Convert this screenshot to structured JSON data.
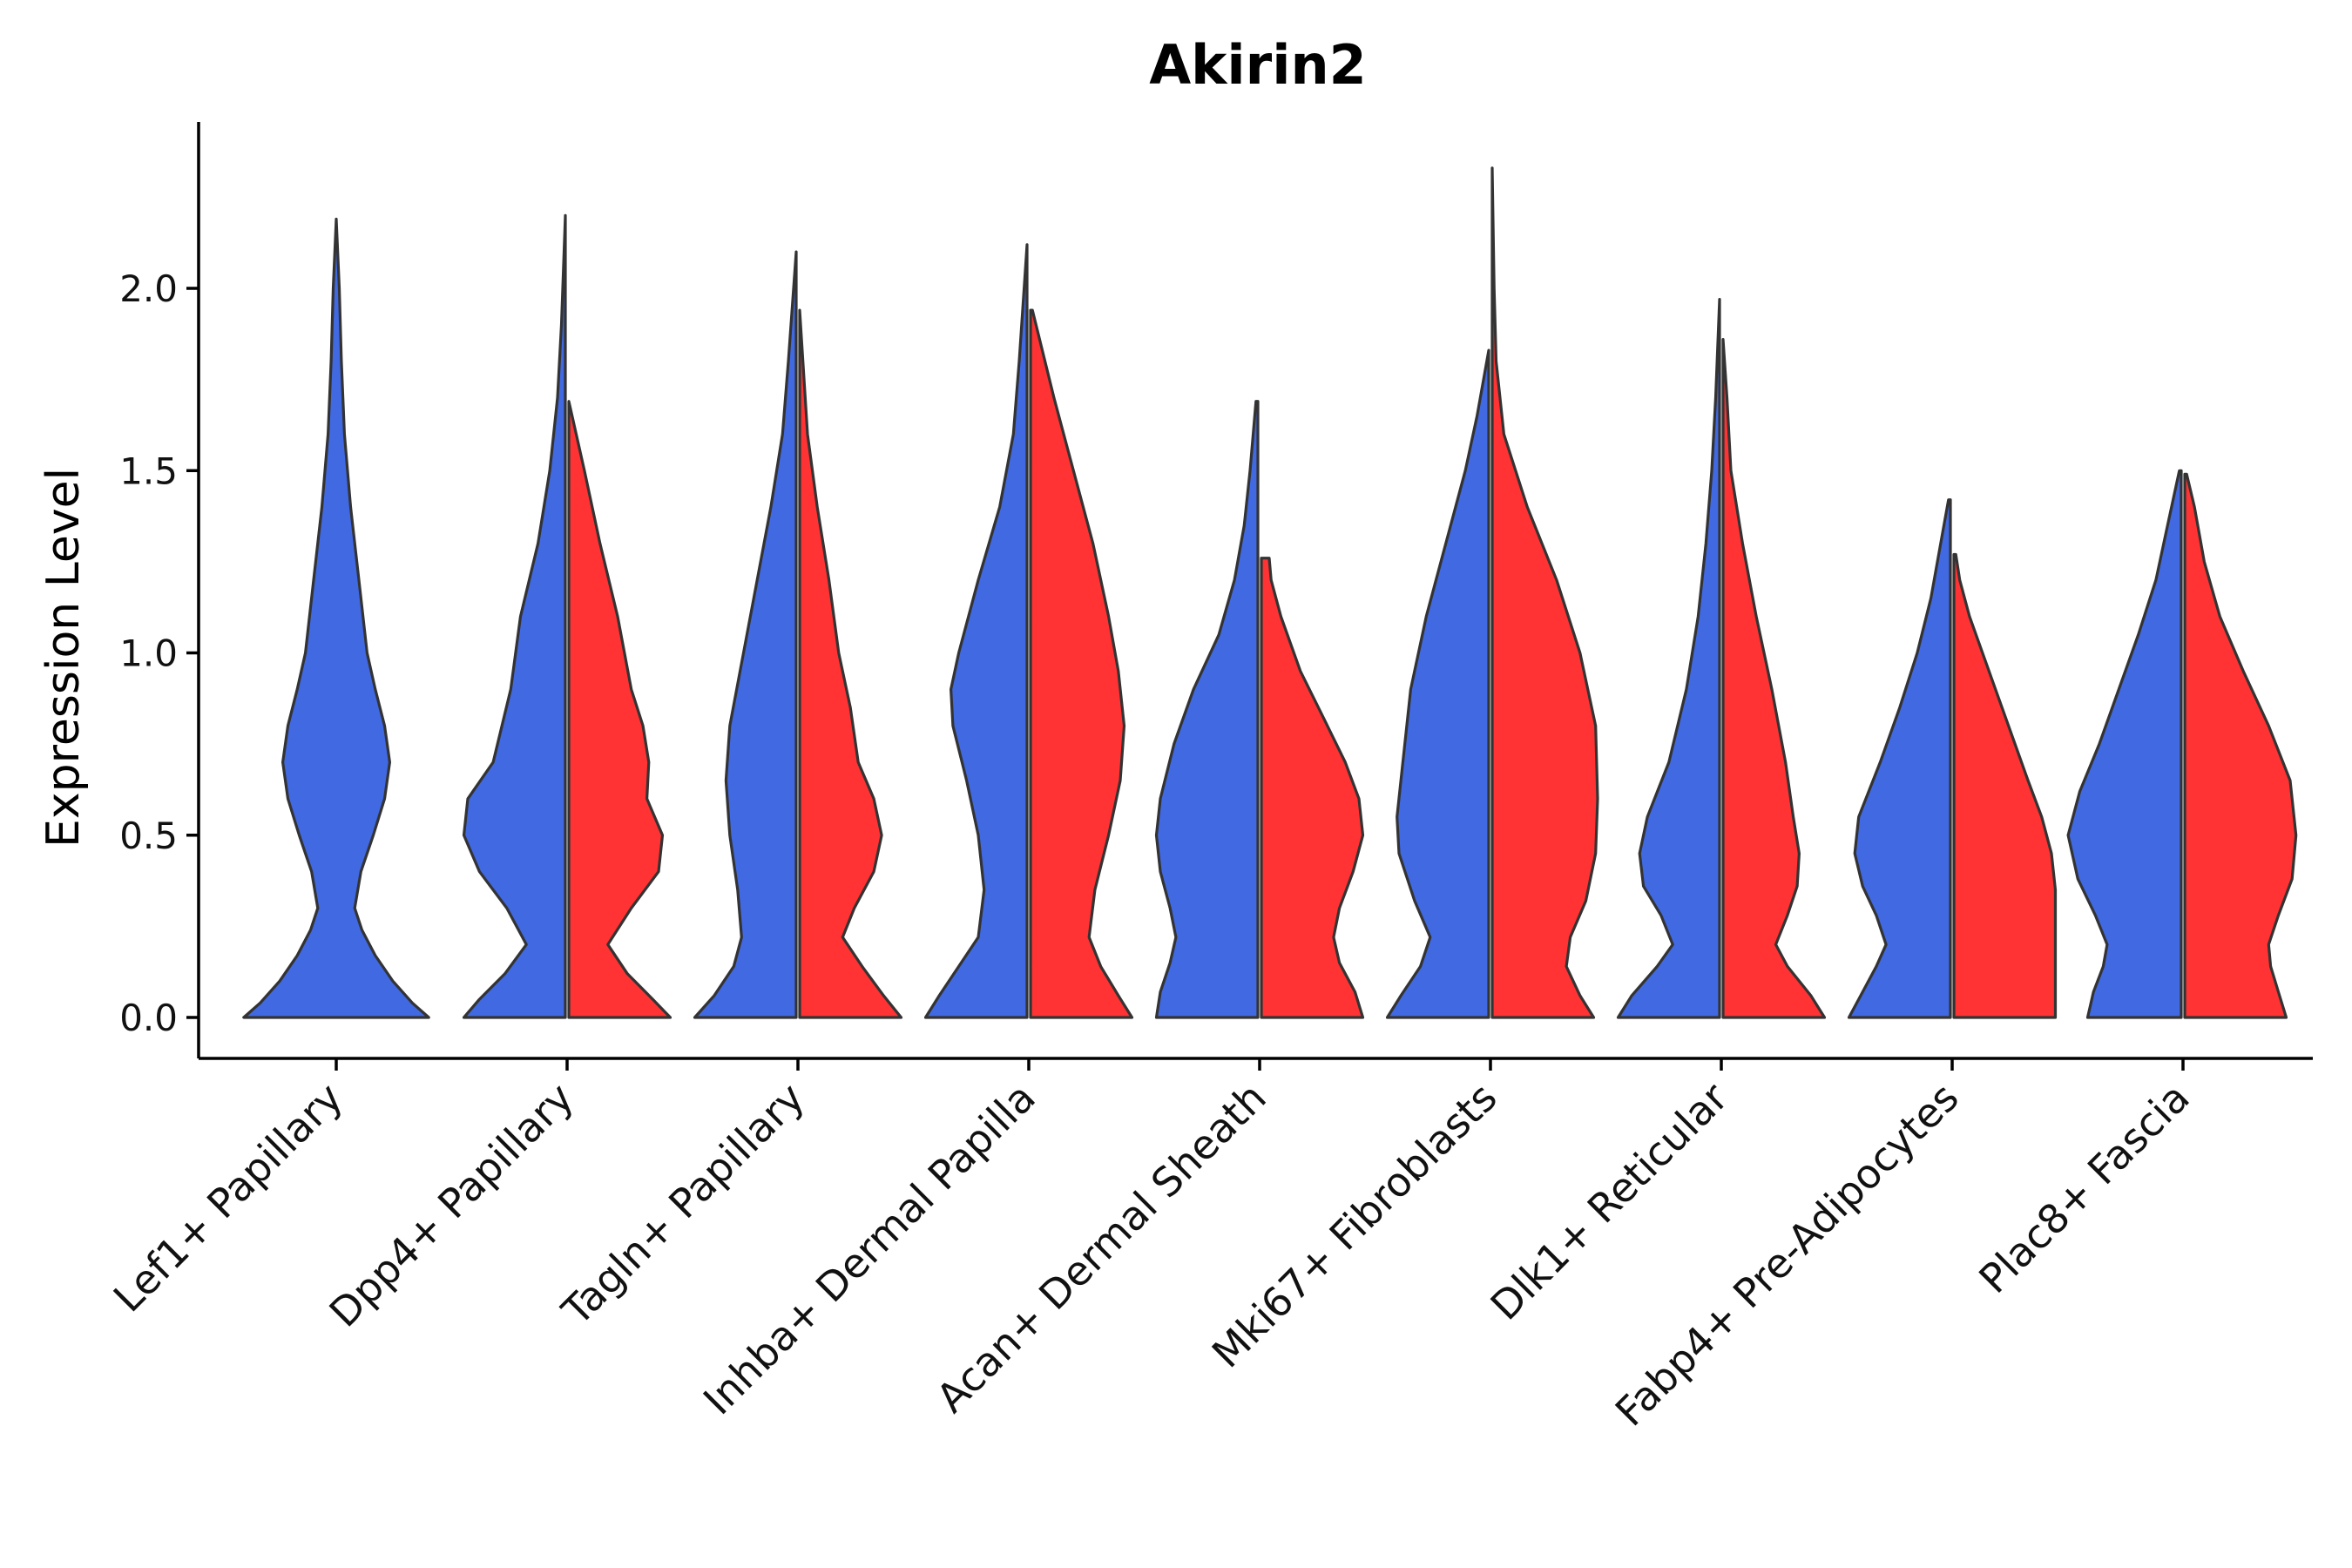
{
  "chart_data": {
    "type": "violin",
    "title": "Akirin2",
    "xlabel": "",
    "ylabel": "Expression Level",
    "ylim": [
      -0.12,
      2.45
    ],
    "yticks": [
      0.0,
      0.5,
      1.0,
      1.5,
      2.0
    ],
    "ytick_labels": [
      "0.0",
      "0.5",
      "1.0",
      "1.5",
      "2.0"
    ],
    "grid": false,
    "legend": "none",
    "categories": [
      "Lef1+ Papillary",
      "Dpp4+ Papillary",
      "Tagln+ Papillary",
      "Inhba+ Dermal Papilla",
      "Acan+ Dermal Sheath",
      "Mki67+ Fibroblasts",
      "Dlk1+ Reticular",
      "Fabp4+ Pre-Adipocytes",
      "Plac8+ Fascia"
    ],
    "series_colors": [
      "#4169E1",
      "#FF3333"
    ],
    "violins": [
      {
        "category": "Lef1+ Papillary",
        "group": 0,
        "split": "full",
        "max": 2.19,
        "profile": [
          [
            0.0,
            0.9
          ],
          [
            0.04,
            0.74
          ],
          [
            0.1,
            0.55
          ],
          [
            0.17,
            0.38
          ],
          [
            0.24,
            0.25
          ],
          [
            0.3,
            0.18
          ],
          [
            0.4,
            0.24
          ],
          [
            0.5,
            0.36
          ],
          [
            0.6,
            0.47
          ],
          [
            0.7,
            0.52
          ],
          [
            0.8,
            0.47
          ],
          [
            0.9,
            0.38
          ],
          [
            1.0,
            0.3
          ],
          [
            1.2,
            0.22
          ],
          [
            1.4,
            0.14
          ],
          [
            1.6,
            0.08
          ],
          [
            1.8,
            0.05
          ],
          [
            2.0,
            0.03
          ],
          [
            2.19,
            0.0
          ]
        ]
      },
      {
        "category": "Dpp4+ Papillary",
        "group": 0,
        "split": "left",
        "max": 2.2,
        "profile": [
          [
            0.0,
            0.52
          ],
          [
            0.05,
            0.44
          ],
          [
            0.12,
            0.31
          ],
          [
            0.2,
            0.2
          ],
          [
            0.3,
            0.3
          ],
          [
            0.4,
            0.44
          ],
          [
            0.5,
            0.52
          ],
          [
            0.6,
            0.5
          ],
          [
            0.7,
            0.37
          ],
          [
            0.9,
            0.28
          ],
          [
            1.1,
            0.23
          ],
          [
            1.3,
            0.14
          ],
          [
            1.5,
            0.08
          ],
          [
            1.7,
            0.04
          ],
          [
            1.9,
            0.02
          ],
          [
            2.2,
            0.0
          ]
        ]
      },
      {
        "category": "Dpp4+ Papillary",
        "group": 1,
        "split": "right",
        "max": 1.69,
        "profile": [
          [
            0.0,
            0.52
          ],
          [
            0.05,
            0.43
          ],
          [
            0.12,
            0.3
          ],
          [
            0.2,
            0.2
          ],
          [
            0.3,
            0.32
          ],
          [
            0.4,
            0.46
          ],
          [
            0.5,
            0.48
          ],
          [
            0.6,
            0.4
          ],
          [
            0.7,
            0.41
          ],
          [
            0.8,
            0.38
          ],
          [
            0.9,
            0.32
          ],
          [
            1.1,
            0.25
          ],
          [
            1.3,
            0.16
          ],
          [
            1.5,
            0.08
          ],
          [
            1.69,
            0.0
          ]
        ]
      },
      {
        "category": "Tagln+ Papillary",
        "group": 0,
        "split": "left",
        "max": 2.1,
        "profile": [
          [
            0.0,
            0.52
          ],
          [
            0.06,
            0.42
          ],
          [
            0.14,
            0.32
          ],
          [
            0.22,
            0.28
          ],
          [
            0.35,
            0.3
          ],
          [
            0.5,
            0.34
          ],
          [
            0.65,
            0.36
          ],
          [
            0.8,
            0.34
          ],
          [
            1.0,
            0.27
          ],
          [
            1.2,
            0.2
          ],
          [
            1.4,
            0.13
          ],
          [
            1.6,
            0.07
          ],
          [
            1.8,
            0.04
          ],
          [
            2.1,
            0.0
          ]
        ]
      },
      {
        "category": "Tagln+ Papillary",
        "group": 1,
        "split": "right",
        "max": 1.94,
        "profile": [
          [
            0.0,
            0.52
          ],
          [
            0.06,
            0.43
          ],
          [
            0.14,
            0.32
          ],
          [
            0.22,
            0.22
          ],
          [
            0.3,
            0.28
          ],
          [
            0.4,
            0.38
          ],
          [
            0.5,
            0.42
          ],
          [
            0.6,
            0.38
          ],
          [
            0.7,
            0.3
          ],
          [
            0.85,
            0.26
          ],
          [
            1.0,
            0.2
          ],
          [
            1.2,
            0.15
          ],
          [
            1.4,
            0.09
          ],
          [
            1.6,
            0.04
          ],
          [
            1.94,
            0.0
          ]
        ]
      },
      {
        "category": "Inhba+ Dermal Papilla",
        "group": 0,
        "split": "left",
        "max": 2.12,
        "profile": [
          [
            0.0,
            0.52
          ],
          [
            0.06,
            0.45
          ],
          [
            0.14,
            0.35
          ],
          [
            0.22,
            0.25
          ],
          [
            0.35,
            0.22
          ],
          [
            0.5,
            0.25
          ],
          [
            0.65,
            0.31
          ],
          [
            0.8,
            0.38
          ],
          [
            0.9,
            0.39
          ],
          [
            1.0,
            0.35
          ],
          [
            1.2,
            0.25
          ],
          [
            1.4,
            0.14
          ],
          [
            1.6,
            0.07
          ],
          [
            1.8,
            0.04
          ],
          [
            2.12,
            0.0
          ]
        ]
      },
      {
        "category": "Inhba+ Dermal Papilla",
        "group": 1,
        "split": "right",
        "max": 1.94,
        "profile": [
          [
            0.0,
            0.52
          ],
          [
            0.06,
            0.45
          ],
          [
            0.14,
            0.36
          ],
          [
            0.22,
            0.3
          ],
          [
            0.35,
            0.33
          ],
          [
            0.5,
            0.4
          ],
          [
            0.65,
            0.46
          ],
          [
            0.8,
            0.48
          ],
          [
            0.95,
            0.45
          ],
          [
            1.1,
            0.4
          ],
          [
            1.3,
            0.32
          ],
          [
            1.5,
            0.22
          ],
          [
            1.7,
            0.12
          ],
          [
            1.94,
            0.01
          ]
        ]
      },
      {
        "category": "Acan+ Dermal Sheath",
        "group": 0,
        "split": "left",
        "max": 1.69,
        "profile": [
          [
            0.0,
            0.52
          ],
          [
            0.07,
            0.5
          ],
          [
            0.15,
            0.45
          ],
          [
            0.22,
            0.42
          ],
          [
            0.3,
            0.45
          ],
          [
            0.4,
            0.5
          ],
          [
            0.5,
            0.52
          ],
          [
            0.6,
            0.5
          ],
          [
            0.75,
            0.43
          ],
          [
            0.9,
            0.33
          ],
          [
            1.05,
            0.2
          ],
          [
            1.2,
            0.12
          ],
          [
            1.35,
            0.07
          ],
          [
            1.5,
            0.04
          ],
          [
            1.69,
            0.01
          ]
        ]
      },
      {
        "category": "Acan+ Dermal Sheath",
        "group": 1,
        "split": "right",
        "max": 1.26,
        "profile": [
          [
            0.0,
            0.52
          ],
          [
            0.07,
            0.48
          ],
          [
            0.15,
            0.4
          ],
          [
            0.22,
            0.37
          ],
          [
            0.3,
            0.4
          ],
          [
            0.4,
            0.47
          ],
          [
            0.5,
            0.52
          ],
          [
            0.6,
            0.5
          ],
          [
            0.7,
            0.43
          ],
          [
            0.82,
            0.32
          ],
          [
            0.95,
            0.2
          ],
          [
            1.1,
            0.1
          ],
          [
            1.2,
            0.05
          ],
          [
            1.26,
            0.04
          ]
        ]
      },
      {
        "category": "Mki67+ Fibroblasts",
        "group": 0,
        "split": "left",
        "max": 1.83,
        "profile": [
          [
            0.0,
            0.52
          ],
          [
            0.06,
            0.45
          ],
          [
            0.14,
            0.35
          ],
          [
            0.22,
            0.3
          ],
          [
            0.32,
            0.38
          ],
          [
            0.45,
            0.46
          ],
          [
            0.55,
            0.47
          ],
          [
            0.7,
            0.44
          ],
          [
            0.9,
            0.4
          ],
          [
            1.1,
            0.32
          ],
          [
            1.3,
            0.22
          ],
          [
            1.5,
            0.12
          ],
          [
            1.65,
            0.06
          ],
          [
            1.83,
            0.0
          ]
        ]
      },
      {
        "category": "Mki67+ Fibroblasts",
        "group": 1,
        "split": "right",
        "max": 2.33,
        "profile": [
          [
            0.0,
            0.52
          ],
          [
            0.06,
            0.45
          ],
          [
            0.14,
            0.38
          ],
          [
            0.22,
            0.4
          ],
          [
            0.32,
            0.48
          ],
          [
            0.45,
            0.53
          ],
          [
            0.6,
            0.54
          ],
          [
            0.8,
            0.53
          ],
          [
            1.0,
            0.45
          ],
          [
            1.2,
            0.33
          ],
          [
            1.4,
            0.18
          ],
          [
            1.6,
            0.06
          ],
          [
            1.8,
            0.02
          ],
          [
            2.0,
            0.01
          ],
          [
            2.33,
            0.0
          ]
        ]
      },
      {
        "category": "Dlk1+ Reticular",
        "group": 0,
        "split": "left",
        "max": 1.97,
        "profile": [
          [
            0.0,
            0.52
          ],
          [
            0.06,
            0.45
          ],
          [
            0.14,
            0.32
          ],
          [
            0.2,
            0.24
          ],
          [
            0.28,
            0.3
          ],
          [
            0.36,
            0.39
          ],
          [
            0.45,
            0.41
          ],
          [
            0.55,
            0.37
          ],
          [
            0.7,
            0.26
          ],
          [
            0.9,
            0.17
          ],
          [
            1.1,
            0.11
          ],
          [
            1.3,
            0.07
          ],
          [
            1.5,
            0.04
          ],
          [
            1.7,
            0.02
          ],
          [
            1.97,
            0.0
          ]
        ]
      },
      {
        "category": "Dlk1+ Reticular",
        "group": 1,
        "split": "right",
        "max": 1.86,
        "profile": [
          [
            0.0,
            0.52
          ],
          [
            0.06,
            0.45
          ],
          [
            0.14,
            0.33
          ],
          [
            0.2,
            0.27
          ],
          [
            0.28,
            0.33
          ],
          [
            0.36,
            0.38
          ],
          [
            0.45,
            0.39
          ],
          [
            0.55,
            0.36
          ],
          [
            0.7,
            0.32
          ],
          [
            0.9,
            0.25
          ],
          [
            1.1,
            0.17
          ],
          [
            1.3,
            0.1
          ],
          [
            1.5,
            0.04
          ],
          [
            1.7,
            0.02
          ],
          [
            1.86,
            0.0
          ]
        ]
      },
      {
        "category": "Fabp4+ Pre-Adipocytes",
        "group": 0,
        "split": "left",
        "max": 1.42,
        "profile": [
          [
            0.0,
            0.52
          ],
          [
            0.06,
            0.46
          ],
          [
            0.14,
            0.38
          ],
          [
            0.2,
            0.33
          ],
          [
            0.28,
            0.38
          ],
          [
            0.36,
            0.45
          ],
          [
            0.45,
            0.49
          ],
          [
            0.55,
            0.47
          ],
          [
            0.7,
            0.36
          ],
          [
            0.85,
            0.26
          ],
          [
            1.0,
            0.17
          ],
          [
            1.15,
            0.1
          ],
          [
            1.3,
            0.05
          ],
          [
            1.42,
            0.01
          ]
        ]
      },
      {
        "category": "Fabp4+ Pre-Adipocytes",
        "group": 1,
        "split": "right",
        "max": 1.27,
        "profile": [
          [
            0.0,
            0.52
          ],
          [
            0.08,
            0.52
          ],
          [
            0.16,
            0.52
          ],
          [
            0.25,
            0.52
          ],
          [
            0.35,
            0.52
          ],
          [
            0.45,
            0.5
          ],
          [
            0.55,
            0.45
          ],
          [
            0.65,
            0.38
          ],
          [
            0.8,
            0.28
          ],
          [
            0.95,
            0.18
          ],
          [
            1.1,
            0.08
          ],
          [
            1.2,
            0.03
          ],
          [
            1.27,
            0.01
          ]
        ]
      },
      {
        "category": "Plac8+ Fascia",
        "group": 0,
        "split": "left",
        "max": 1.5,
        "profile": [
          [
            0.0,
            0.48
          ],
          [
            0.07,
            0.45
          ],
          [
            0.14,
            0.4
          ],
          [
            0.2,
            0.38
          ],
          [
            0.28,
            0.44
          ],
          [
            0.38,
            0.53
          ],
          [
            0.5,
            0.58
          ],
          [
            0.62,
            0.52
          ],
          [
            0.75,
            0.42
          ],
          [
            0.9,
            0.32
          ],
          [
            1.05,
            0.22
          ],
          [
            1.2,
            0.13
          ],
          [
            1.35,
            0.07
          ],
          [
            1.5,
            0.01
          ]
        ]
      },
      {
        "category": "Plac8+ Fascia",
        "group": 1,
        "split": "right",
        "max": 1.49,
        "profile": [
          [
            0.0,
            0.52
          ],
          [
            0.07,
            0.48
          ],
          [
            0.14,
            0.44
          ],
          [
            0.2,
            0.43
          ],
          [
            0.28,
            0.48
          ],
          [
            0.38,
            0.55
          ],
          [
            0.5,
            0.57
          ],
          [
            0.65,
            0.54
          ],
          [
            0.8,
            0.43
          ],
          [
            0.95,
            0.3
          ],
          [
            1.1,
            0.18
          ],
          [
            1.25,
            0.1
          ],
          [
            1.4,
            0.05
          ],
          [
            1.49,
            0.01
          ]
        ]
      }
    ]
  }
}
